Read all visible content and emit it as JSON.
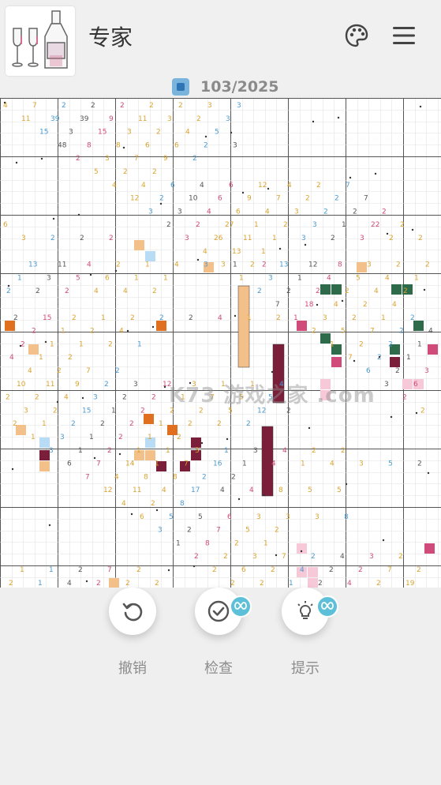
{
  "header": {
    "title": "专家",
    "palette_icon": "palette-icon",
    "menu_icon": "menu-icon",
    "thumbnail_icon": "puzzle-thumbnail-bottles"
  },
  "progress": {
    "label": "103/2025"
  },
  "toolbar": {
    "undo_label": "撤销",
    "check_label": "检查",
    "hint_label": "提示"
  },
  "watermark": "K73 游戏之家 .com",
  "colors": {
    "orange": "#f4c08a",
    "dark_orange": "#e07020",
    "maroon": "#7a1e3a",
    "dark_green": "#2e6b4a",
    "light_blue": "#b8dcf5",
    "pink": "#d04a7a",
    "light_pink": "#f6c8d8",
    "number_yellow": "#d9a431",
    "number_blue": "#4a9ad0"
  },
  "board": {
    "numbers": [
      [
        "4",
        "7",
        "2",
        "2",
        "2",
        "2",
        "2",
        "3",
        "3"
      ],
      [
        "11",
        "39",
        "39",
        "9",
        "11",
        "3",
        "2",
        "3"
      ],
      [
        "15",
        "3",
        "15",
        "3",
        "2",
        "4",
        "5"
      ],
      [
        "48",
        "8",
        "8",
        "6",
        "6",
        "2",
        "3"
      ],
      [
        "2",
        "3",
        "7",
        "9",
        "2"
      ],
      [
        "5",
        "2",
        "2"
      ],
      [
        "4",
        "4",
        "6",
        "4",
        "6",
        "12",
        "4",
        "2",
        "7"
      ],
      [
        "12",
        "2",
        "10",
        "6",
        "9",
        "7",
        "2",
        "2",
        "7"
      ],
      [
        "3",
        "3",
        "4",
        "6",
        "4",
        "3",
        "2",
        "2",
        "2"
      ],
      [
        "2",
        "2",
        "27",
        "1",
        "2",
        "3",
        "1",
        "22",
        "2",
        "6"
      ],
      [
        "3",
        "26",
        "11",
        "1",
        "3",
        "2",
        "3",
        "2",
        "2",
        "3",
        "2",
        "2",
        "2"
      ],
      [
        "4",
        "13",
        "1"
      ],
      [
        "3",
        "2",
        "13",
        "12",
        "8",
        "3",
        "2",
        "2",
        "13",
        "11",
        "4",
        "2",
        "1",
        "4",
        "3",
        "1",
        "2"
      ],
      [
        "1",
        "3",
        "1",
        "4",
        "5",
        "4",
        "1",
        "1",
        "3",
        "5",
        "6",
        "1",
        "1"
      ],
      [
        "2",
        "2",
        "2",
        "2",
        "4",
        "2",
        "2",
        "2",
        "2",
        "4",
        "4",
        "2"
      ],
      [
        "7",
        "18",
        "4",
        "2",
        "4"
      ],
      [
        "1",
        "3",
        "2",
        "1",
        "2",
        "2",
        "15",
        "2",
        "1",
        "2",
        "2",
        "2",
        "4",
        "1",
        "2"
      ],
      [
        "2",
        "5",
        "7",
        "2",
        "4",
        "2",
        "1",
        "2",
        "4"
      ],
      [
        "1",
        "2",
        "2",
        "1",
        "2",
        "1",
        "1",
        "2",
        "1"
      ],
      [
        "7",
        "2",
        "1",
        "4",
        "1",
        "2"
      ],
      [
        "6",
        "2",
        "3",
        "4",
        "2",
        "7",
        "2"
      ],
      [
        "3",
        "6",
        "10",
        "11",
        "9",
        "2",
        "3",
        "12",
        "3",
        "1",
        "1",
        "4"
      ],
      [
        "2",
        "2",
        "2",
        "4",
        "3",
        "2",
        "2",
        "1",
        "7",
        "5",
        "5"
      ],
      [
        "2",
        "3",
        "2",
        "15",
        "1",
        "2",
        "2",
        "2",
        "5",
        "12",
        "2"
      ],
      [
        "2",
        "1",
        "2",
        "2",
        "2",
        "1",
        "2",
        "2",
        "2"
      ],
      [
        "1",
        "3",
        "1",
        "2",
        "1",
        "2"
      ],
      [
        "3",
        "1",
        "2",
        "1",
        "1",
        "3",
        "1",
        "3",
        "4",
        "2",
        "2"
      ],
      [
        "6",
        "7",
        "14",
        "1",
        "7",
        "16",
        "1",
        "4",
        "1",
        "4",
        "3",
        "5",
        "2"
      ],
      [
        "7",
        "4",
        "8",
        "8",
        "2",
        "2"
      ],
      [
        "12",
        "11",
        "4",
        "17",
        "4",
        "4",
        "8",
        "5",
        "5"
      ],
      [
        "4",
        "2",
        "8"
      ],
      [
        "6",
        "5",
        "5",
        "6",
        "3",
        "3",
        "3",
        "8"
      ],
      [
        "3",
        "2",
        "7",
        "5",
        "2"
      ],
      [
        "1",
        "8",
        "2",
        "1"
      ],
      [
        "2",
        "2",
        "3",
        "7",
        "2",
        "4",
        "3",
        "2"
      ],
      [
        "2",
        "6",
        "2",
        "4",
        "2",
        "2",
        "7",
        "2",
        "1",
        "1",
        "2",
        "7",
        "2"
      ],
      [
        "2",
        "2",
        "1",
        "2",
        "4",
        "2",
        "19",
        "2",
        "1",
        "4",
        "2",
        "2",
        "2"
      ]
    ]
  }
}
